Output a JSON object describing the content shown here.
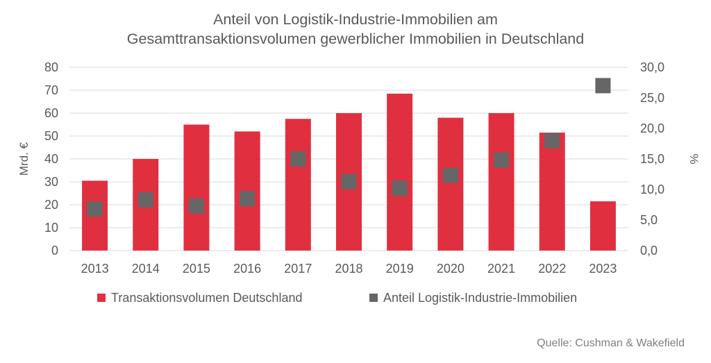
{
  "title_line1": "Anteil von Logistik-Industrie-Immobilien am",
  "title_line2": "Gesamttransaktionsvolumen gewerblicher Immobilien in Deutschland",
  "source": "Quelle: Cushman & Wakefield",
  "colors": {
    "bar": "#e03040",
    "marker": "#666666",
    "grid": "#d9d9d9",
    "text": "#595959"
  },
  "chart_data": {
    "type": "bar",
    "categories": [
      "2013",
      "2014",
      "2015",
      "2016",
      "2017",
      "2018",
      "2019",
      "2020",
      "2021",
      "2022",
      "2023"
    ],
    "series": [
      {
        "name": "Transaktionsvolumen Deutschland",
        "type": "bar",
        "axis": "left",
        "values": [
          30.5,
          40,
          55,
          52,
          57.5,
          60,
          68.5,
          58,
          60,
          51.5,
          21.5
        ]
      },
      {
        "name": "Anteil Logistik-Industrie-Immobilien",
        "type": "scatter",
        "axis": "right",
        "values": [
          6.8,
          8.3,
          7.3,
          8.5,
          15.0,
          11.3,
          10.2,
          12.3,
          14.8,
          18.0,
          27.0
        ]
      }
    ],
    "ylabel": "Mrd. €",
    "ylabel_right": "%",
    "ylim": [
      0,
      80
    ],
    "ylim_right": [
      0,
      30
    ],
    "yticks": [
      "0",
      "10",
      "20",
      "30",
      "40",
      "50",
      "60",
      "70",
      "80"
    ],
    "yticks_right": [
      "0,0",
      "5,0",
      "10,0",
      "15,0",
      "20,0",
      "25,0",
      "30,0"
    ],
    "grid": true,
    "legend": "bottom"
  }
}
